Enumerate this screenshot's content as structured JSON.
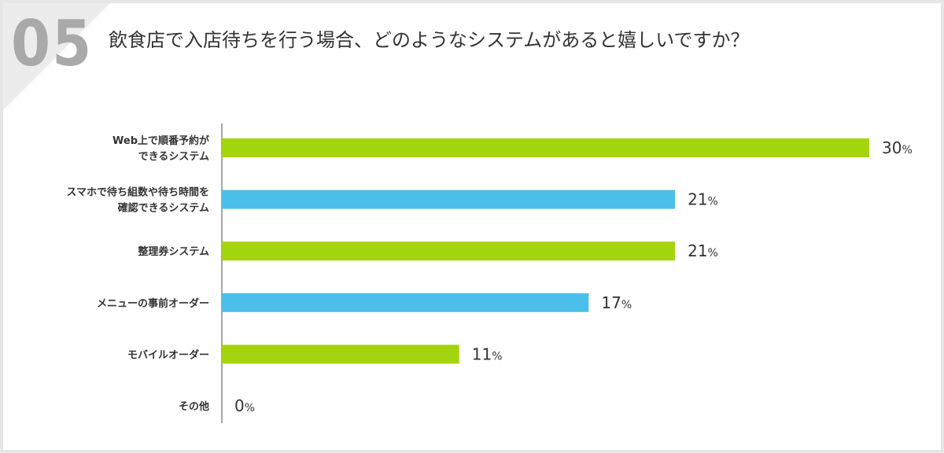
{
  "question": {
    "number": "05",
    "title": "飲食店で入店待ちを行う場合、どのようなシステムがあると嬉しいですか？"
  },
  "colors": {
    "green": "#a4d40e",
    "blue": "#4bbfe9",
    "axis": "#888888"
  },
  "chart_data": {
    "type": "bar",
    "orientation": "horizontal",
    "unit": "%",
    "xlim": [
      0,
      30
    ],
    "categories": [
      [
        "Web上で順番予約が",
        "できるシステム"
      ],
      [
        "スマホで待ち組数や待ち時間を",
        "確認できるシステム"
      ],
      [
        "整理券システム"
      ],
      [
        "メニューの事前オーダー"
      ],
      [
        "モバイルオーダー"
      ],
      [
        "その他"
      ]
    ],
    "values": [
      30,
      21,
      21,
      17,
      11,
      0
    ],
    "value_labels": [
      "30",
      "21",
      "21",
      "17",
      "11",
      "0"
    ],
    "bar_colors": [
      "green",
      "blue",
      "green",
      "blue",
      "green",
      "green"
    ],
    "grid": false,
    "legend": "none"
  }
}
